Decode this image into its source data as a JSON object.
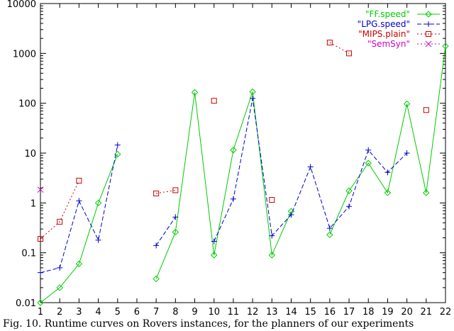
{
  "chart_data": {
    "type": "line",
    "xlabel": "",
    "ylabel": "",
    "y_scale": "log",
    "xlim": [
      1,
      22
    ],
    "ylim": [
      0.01,
      10000
    ],
    "x_ticks": [
      "1",
      "2",
      "3",
      "4",
      "5",
      "6",
      "7",
      "8",
      "9",
      "10",
      "11",
      "12",
      "13",
      "14",
      "15",
      "16",
      "17",
      "18",
      "19",
      "20",
      "21",
      "22"
    ],
    "y_ticks": [
      "0.01",
      "0.1",
      "1",
      "10",
      "100",
      "1000",
      "10000"
    ],
    "grid": false,
    "legend_position": "top-right",
    "series": [
      {
        "name": "\"FF.speed\"",
        "color": "#00cc00",
        "line_style": "solid",
        "marker": "diamond",
        "points": [
          [
            1,
            0.01
          ],
          [
            2,
            0.02
          ],
          [
            3,
            0.06
          ],
          [
            4,
            1.0
          ],
          [
            5,
            9.5
          ],
          [
            7,
            0.03
          ],
          [
            8,
            0.26
          ],
          [
            9,
            165
          ],
          [
            10,
            0.09
          ],
          [
            11,
            11.5
          ],
          [
            12,
            170
          ],
          [
            13,
            0.09
          ],
          [
            14,
            0.68
          ],
          [
            16,
            0.23
          ],
          [
            17,
            1.75
          ],
          [
            18,
            6.3
          ],
          [
            19,
            1.6
          ],
          [
            20,
            97
          ],
          [
            21,
            1.6
          ],
          [
            22,
            1400
          ]
        ]
      },
      {
        "name": "\"LPG.speed\"",
        "color": "#0000cc",
        "line_style": "dashed",
        "marker": "plus",
        "points": [
          [
            1,
            0.04
          ],
          [
            2,
            0.05
          ],
          [
            3,
            1.1
          ],
          [
            4,
            0.18
          ],
          [
            5,
            14.5
          ],
          [
            7,
            0.14
          ],
          [
            8,
            0.52
          ],
          [
            10,
            0.17
          ],
          [
            11,
            1.2
          ],
          [
            12,
            125
          ],
          [
            13,
            0.22
          ],
          [
            14,
            0.58
          ],
          [
            15,
            5.3
          ],
          [
            16,
            0.31
          ],
          [
            17,
            0.85
          ],
          [
            18,
            11.5
          ],
          [
            19,
            4.1
          ],
          [
            20,
            10
          ]
        ]
      },
      {
        "name": "\"MIPS.plain\"",
        "color": "#cc0000",
        "line_style": "dotted",
        "marker": "square",
        "points": [
          [
            1,
            0.19
          ],
          [
            2,
            0.42
          ],
          [
            3,
            2.8
          ],
          [
            7,
            1.55
          ],
          [
            8,
            1.8
          ],
          [
            10,
            112
          ],
          [
            13,
            1.15
          ],
          [
            16,
            1650
          ],
          [
            17,
            1000
          ],
          [
            21,
            73
          ]
        ]
      },
      {
        "name": "\"SemSyn\"",
        "color": "#cc00cc",
        "line_style": "dotted",
        "marker": "cross",
        "points": [
          [
            1,
            1.85
          ]
        ]
      }
    ]
  },
  "caption": "Fig. 10. Runtime curves on Rovers instances, for the planners of our experiments"
}
